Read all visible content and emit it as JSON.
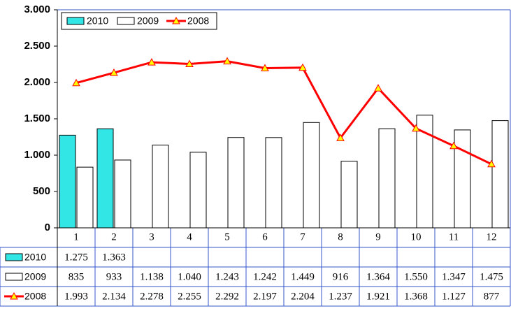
{
  "chart_data": {
    "type": "bar_line_table",
    "categories": [
      "1",
      "2",
      "3",
      "4",
      "5",
      "6",
      "7",
      "8",
      "9",
      "10",
      "11",
      "12"
    ],
    "series": [
      {
        "name": "2010",
        "type": "bar",
        "color": "#33e6e6",
        "values": [
          1275,
          1363,
          null,
          null,
          null,
          null,
          null,
          null,
          null,
          null,
          null,
          null
        ],
        "value_labels": [
          "1.275",
          "1.363",
          null,
          null,
          null,
          null,
          null,
          null,
          null,
          null,
          null,
          null
        ]
      },
      {
        "name": "2009",
        "type": "bar",
        "color": "#ffffff",
        "values": [
          835,
          933,
          1138,
          1040,
          1243,
          1242,
          1449,
          916,
          1364,
          1550,
          1347,
          1475
        ],
        "value_labels": [
          "835",
          "933",
          "1.138",
          "1.040",
          "1.243",
          "1.242",
          "1.449",
          "916",
          "1.364",
          "1.550",
          "1.347",
          "1.475"
        ]
      },
      {
        "name": "2008",
        "type": "line",
        "color": "#ff0000",
        "marker_color": "#ffff00",
        "values": [
          1993,
          2134,
          2278,
          2255,
          2292,
          2197,
          2204,
          1237,
          1921,
          1368,
          1127,
          877
        ],
        "value_labels": [
          "1.993",
          "2.134",
          "2.278",
          "2.255",
          "2.292",
          "2.197",
          "2.204",
          "1.237",
          "1.921",
          "1.368",
          "1.127",
          "877"
        ]
      }
    ],
    "ylim": [
      0,
      3000
    ],
    "yticks": [
      0,
      500,
      {
        "value": 1000,
        "label": "1.000"
      },
      {
        "value": 1500,
        "label": "1.500"
      },
      {
        "value": 2000,
        "label": "2.000"
      },
      {
        "value": 2500,
        "label": "2.500"
      },
      {
        "value": 3000,
        "label": "3.000"
      }
    ],
    "legend": "top-left"
  }
}
